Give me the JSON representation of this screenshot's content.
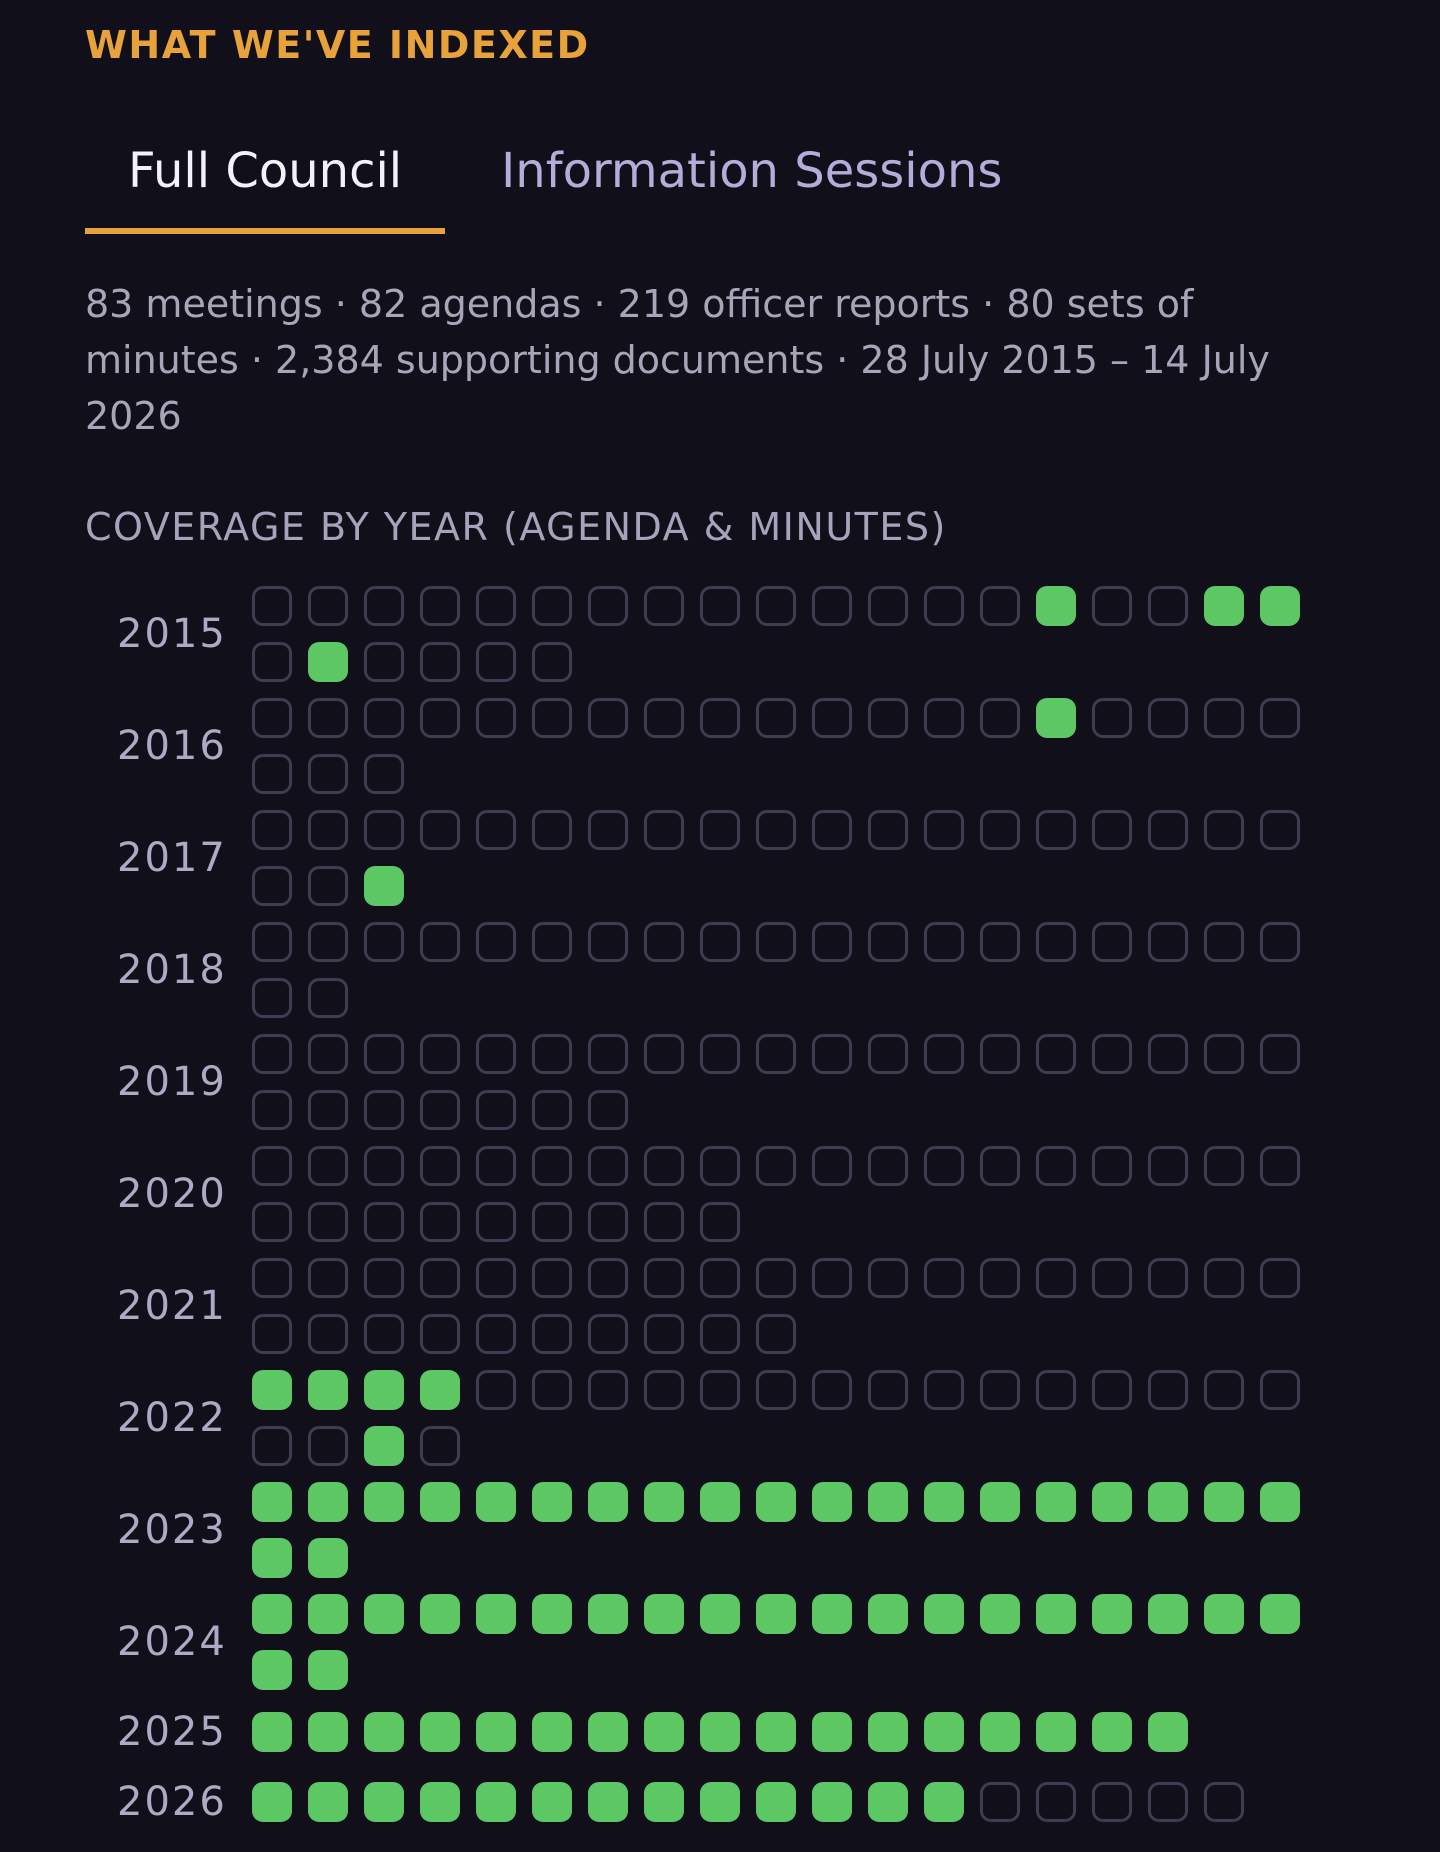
{
  "section": {
    "heading": "WHAT WE'VE INDEXED"
  },
  "tabs": [
    {
      "label": "Full Council",
      "active": true
    },
    {
      "label": "Information Sessions",
      "active": false
    }
  ],
  "summary": "83 meetings · 82 agendas · 219 officer reports · 80 sets of minutes · 2,384 supporting documents · 28 July 2015 – 14 July 2026",
  "coverage": {
    "heading": "COVERAGE BY YEAR (AGENDA & MINUTES)",
    "colors": {
      "filled": "#5cc763",
      "empty_border": "#3e3c4e",
      "accent": "#e8a23a"
    },
    "years": [
      {
        "year": "2015",
        "cells": [
          0,
          0,
          0,
          0,
          0,
          0,
          0,
          0,
          0,
          0,
          0,
          0,
          0,
          0,
          1,
          0,
          0,
          1,
          1,
          0,
          1,
          0,
          0,
          0,
          0
        ]
      },
      {
        "year": "2016",
        "cells": [
          0,
          0,
          0,
          0,
          0,
          0,
          0,
          0,
          0,
          0,
          0,
          0,
          0,
          0,
          1,
          0,
          0,
          0,
          0,
          0,
          0,
          0
        ]
      },
      {
        "year": "2017",
        "cells": [
          0,
          0,
          0,
          0,
          0,
          0,
          0,
          0,
          0,
          0,
          0,
          0,
          0,
          0,
          0,
          0,
          0,
          0,
          0,
          0,
          0,
          1
        ]
      },
      {
        "year": "2018",
        "cells": [
          0,
          0,
          0,
          0,
          0,
          0,
          0,
          0,
          0,
          0,
          0,
          0,
          0,
          0,
          0,
          0,
          0,
          0,
          0,
          0,
          0
        ]
      },
      {
        "year": "2019",
        "cells": [
          0,
          0,
          0,
          0,
          0,
          0,
          0,
          0,
          0,
          0,
          0,
          0,
          0,
          0,
          0,
          0,
          0,
          0,
          0,
          0,
          0,
          0,
          0,
          0,
          0,
          0
        ]
      },
      {
        "year": "2020",
        "cells": [
          0,
          0,
          0,
          0,
          0,
          0,
          0,
          0,
          0,
          0,
          0,
          0,
          0,
          0,
          0,
          0,
          0,
          0,
          0,
          0,
          0,
          0,
          0,
          0,
          0,
          0,
          0,
          0
        ]
      },
      {
        "year": "2021",
        "cells": [
          0,
          0,
          0,
          0,
          0,
          0,
          0,
          0,
          0,
          0,
          0,
          0,
          0,
          0,
          0,
          0,
          0,
          0,
          0,
          0,
          0,
          0,
          0,
          0,
          0,
          0,
          0,
          0,
          0
        ]
      },
      {
        "year": "2022",
        "cells": [
          1,
          1,
          1,
          1,
          0,
          0,
          0,
          0,
          0,
          0,
          0,
          0,
          0,
          0,
          0,
          0,
          0,
          0,
          0,
          0,
          0,
          1,
          0
        ]
      },
      {
        "year": "2023",
        "cells": [
          1,
          1,
          1,
          1,
          1,
          1,
          1,
          1,
          1,
          1,
          1,
          1,
          1,
          1,
          1,
          1,
          1,
          1,
          1,
          1,
          1
        ]
      },
      {
        "year": "2024",
        "cells": [
          1,
          1,
          1,
          1,
          1,
          1,
          1,
          1,
          1,
          1,
          1,
          1,
          1,
          1,
          1,
          1,
          1,
          1,
          1,
          1,
          1
        ]
      },
      {
        "year": "2025",
        "cells": [
          1,
          1,
          1,
          1,
          1,
          1,
          1,
          1,
          1,
          1,
          1,
          1,
          1,
          1,
          1,
          1,
          1
        ]
      },
      {
        "year": "2026",
        "cells": [
          1,
          1,
          1,
          1,
          1,
          1,
          1,
          1,
          1,
          1,
          1,
          1,
          1,
          0,
          0,
          0,
          0,
          0
        ]
      }
    ]
  }
}
